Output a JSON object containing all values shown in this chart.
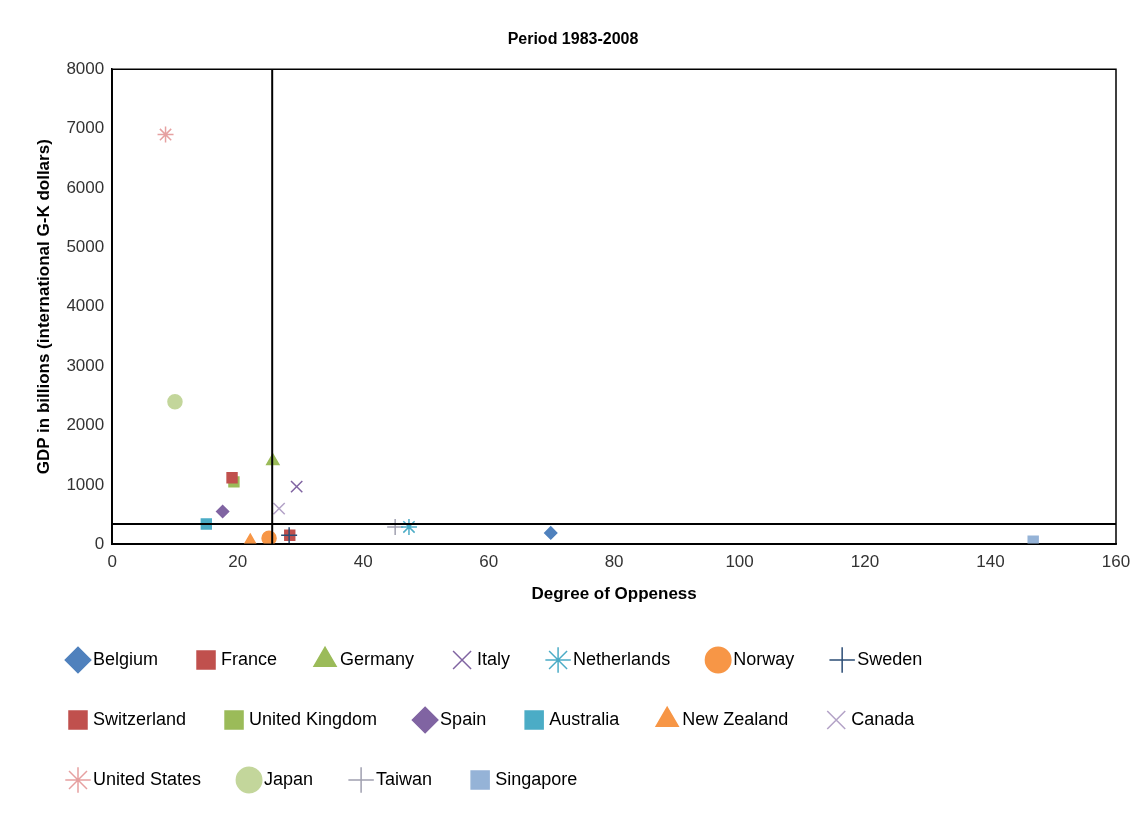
{
  "chart_data": {
    "type": "scatter",
    "title": "Period 1983-2008",
    "xlabel": "Degree of Oppeness",
    "ylabel": "GDP in billions (international G-K dollars)",
    "xlim": [
      0,
      160
    ],
    "xticks": [
      0,
      20,
      40,
      60,
      80,
      100,
      120,
      140,
      160
    ],
    "ylim": [
      0,
      8000
    ],
    "yticks": [
      0,
      1000,
      2000,
      3000,
      4000,
      5000,
      6000,
      7000,
      8000
    ],
    "grid": false,
    "legend": "bottom",
    "ref_lines": [
      {
        "axis": "x",
        "value": 25.5,
        "color": "#000000"
      },
      {
        "axis": "y",
        "value": 340,
        "color": "#000000"
      }
    ],
    "series": [
      {
        "name": "Belgium",
        "color": "#4f81bd",
        "marker": "diamond",
        "x": [
          69.9
        ],
        "values": [
          190
        ]
      },
      {
        "name": "France",
        "color": "#c0504d",
        "marker": "square",
        "x": [
          19.1
        ],
        "values": [
          1120
        ]
      },
      {
        "name": "Germany",
        "color": "#9bbb59",
        "marker": "triangle",
        "x": [
          25.6
        ],
        "values": [
          1400
        ]
      },
      {
        "name": "Italy",
        "color": "#8064a2",
        "marker": "cross",
        "x": [
          29.4
        ],
        "values": [
          970
        ]
      },
      {
        "name": "Netherlands",
        "color": "#4bacc6",
        "x": [
          47.3
        ],
        "values": [
          290
        ]
      },
      {
        "name": "Norway",
        "color": "#f79646",
        "marker": "circle",
        "x": [
          25.0
        ],
        "values": [
          100
        ]
      },
      {
        "name": "Sweden",
        "color": "#2c4d75",
        "marker": "plus",
        "x": [
          28.2
        ],
        "values": [
          150
        ]
      },
      {
        "name": "Switzerland",
        "color": "#c0504d",
        "marker": "square",
        "x": [
          28.3
        ],
        "values": [
          150
        ]
      },
      {
        "name": "United Kingdom",
        "color": "#9bbb59",
        "marker": "square",
        "x": [
          19.4
        ],
        "values": [
          1050
        ]
      },
      {
        "name": "Spain",
        "color": "#8064a2",
        "marker": "diamond",
        "x": [
          17.6
        ],
        "values": [
          550
        ]
      },
      {
        "name": "Australia",
        "color": "#4bacc6",
        "marker": "square",
        "x": [
          15.0
        ],
        "values": [
          340
        ]
      },
      {
        "name": "New Zealand",
        "color": "#f79646",
        "marker": "triangle",
        "x": [
          22.0
        ],
        "values": [
          50
        ]
      },
      {
        "name": "Canada",
        "color": "#b3a2c7",
        "marker": "cross",
        "x": [
          26.6
        ],
        "values": [
          600
        ]
      },
      {
        "name": "United States",
        "color": "#e6a0a0",
        "x": [
          8.5
        ],
        "values": [
          6900
        ]
      },
      {
        "name": "Japan",
        "color": "#c3d69b",
        "marker": "circle",
        "x": [
          10.0
        ],
        "values": [
          2400
        ]
      },
      {
        "name": "Taiwan",
        "color": "#a0a0b0",
        "marker": "plus",
        "x": [
          45.1
        ],
        "values": [
          290
        ]
      },
      {
        "name": "Singapore",
        "color": "#95b3d7",
        "marker": "square",
        "x": [
          146.8
        ],
        "values": [
          50
        ]
      }
    ]
  }
}
